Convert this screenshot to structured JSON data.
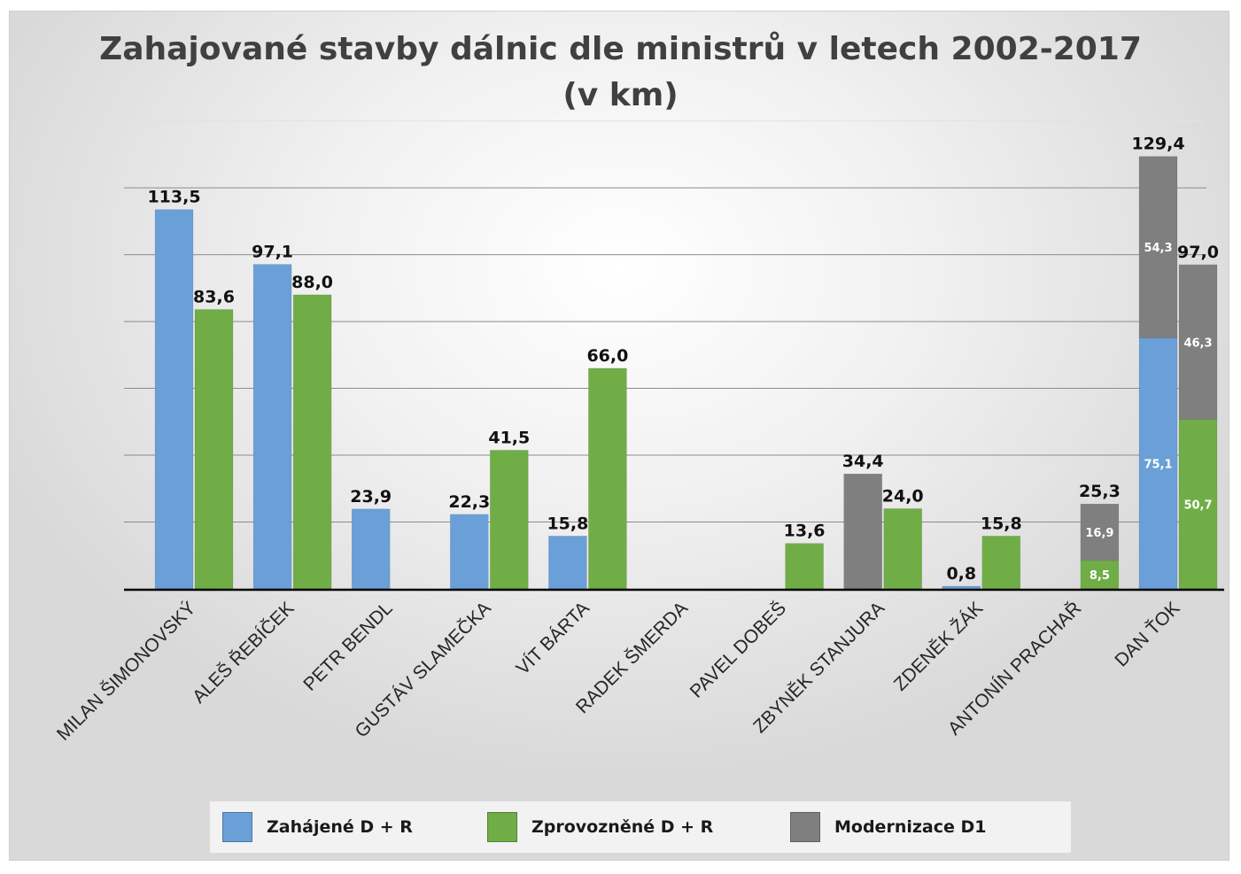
{
  "chart_data": {
    "type": "bar",
    "title": "Zahajované stavby dálnic dle ministrů v letech 2002-2017\n(v km)",
    "title_lines": [
      "Zahajované stavby dálnic dle ministrů v letech 2002-2017",
      "(v km)"
    ],
    "xlabel": "",
    "ylabel": "",
    "ylim": [
      0,
      150
    ],
    "grid": true,
    "legend_placement": "bottom",
    "colors": {
      "started": "#6a9fd8",
      "opened": "#70ad47",
      "d1": "#7f7f7f"
    },
    "legend": [
      {
        "key": "started",
        "label": "Zahájené D + R"
      },
      {
        "key": "opened",
        "label": "Zprovozněné D + R"
      },
      {
        "key": "d1",
        "label": "Modernizace D1"
      }
    ],
    "categories": [
      "MILAN ŠIMONOVSKÝ",
      "ALEŠ ŘEBÍČEK",
      "PETR BENDL",
      "GUSTÁV SLAMEČKA",
      "VÍT BÁRTA",
      "RADEK ŠMERDA",
      "PAVEL DOBEŠ",
      "ZBYNĚK STANJURA",
      "ZDENĚK ŽÁK",
      "ANTONÍN PRACHAŘ",
      "DAN ŤOK"
    ],
    "groups": [
      {
        "bars": [
          {
            "segments": [
              {
                "key": "started",
                "value": 113.5
              }
            ],
            "total_label": "113,5"
          },
          {
            "segments": [
              {
                "key": "opened",
                "value": 83.6
              }
            ],
            "total_label": "83,6"
          }
        ]
      },
      {
        "bars": [
          {
            "segments": [
              {
                "key": "started",
                "value": 97.1
              }
            ],
            "total_label": "97,1"
          },
          {
            "segments": [
              {
                "key": "opened",
                "value": 88.0
              }
            ],
            "total_label": "88,0"
          }
        ]
      },
      {
        "bars": [
          {
            "segments": [
              {
                "key": "started",
                "value": 23.9
              }
            ],
            "total_label": "23,9"
          },
          null
        ]
      },
      {
        "bars": [
          {
            "segments": [
              {
                "key": "started",
                "value": 22.3
              }
            ],
            "total_label": "22,3"
          },
          {
            "segments": [
              {
                "key": "opened",
                "value": 41.5
              }
            ],
            "total_label": "41,5"
          }
        ]
      },
      {
        "bars": [
          {
            "segments": [
              {
                "key": "started",
                "value": 15.8
              }
            ],
            "total_label": "15,8"
          },
          {
            "segments": [
              {
                "key": "opened",
                "value": 66.0
              }
            ],
            "total_label": "66,0"
          }
        ]
      },
      {
        "bars": [
          null,
          null
        ]
      },
      {
        "bars": [
          null,
          {
            "segments": [
              {
                "key": "opened",
                "value": 13.6
              }
            ],
            "total_label": "13,6"
          }
        ]
      },
      {
        "bars": [
          {
            "segments": [
              {
                "key": "d1",
                "value": 34.4
              }
            ],
            "total_label": "34,4"
          },
          {
            "segments": [
              {
                "key": "opened",
                "value": 24.0
              }
            ],
            "total_label": "24,0"
          }
        ]
      },
      {
        "bars": [
          {
            "segments": [
              {
                "key": "started",
                "value": 0.8
              }
            ],
            "total_label": "0,8"
          },
          {
            "segments": [
              {
                "key": "opened",
                "value": 15.8
              }
            ],
            "total_label": "15,8"
          }
        ]
      },
      {
        "bars": [
          null,
          {
            "segments": [
              {
                "key": "opened",
                "value": 8.5,
                "label": "8,5"
              },
              {
                "key": "d1",
                "value": 16.9,
                "label": "16,9"
              }
            ],
            "total_label": "25,3"
          }
        ]
      },
      {
        "bars": [
          {
            "segments": [
              {
                "key": "started",
                "value": 75.1,
                "label": "75,1"
              },
              {
                "key": "d1",
                "value": 54.3,
                "label": "54,3"
              }
            ],
            "total_label": "129,4"
          },
          {
            "segments": [
              {
                "key": "opened",
                "value": 50.7,
                "label": "50,7"
              },
              {
                "key": "d1",
                "value": 46.3,
                "label": "46,3"
              }
            ],
            "total_label": "97,0"
          }
        ]
      }
    ]
  }
}
